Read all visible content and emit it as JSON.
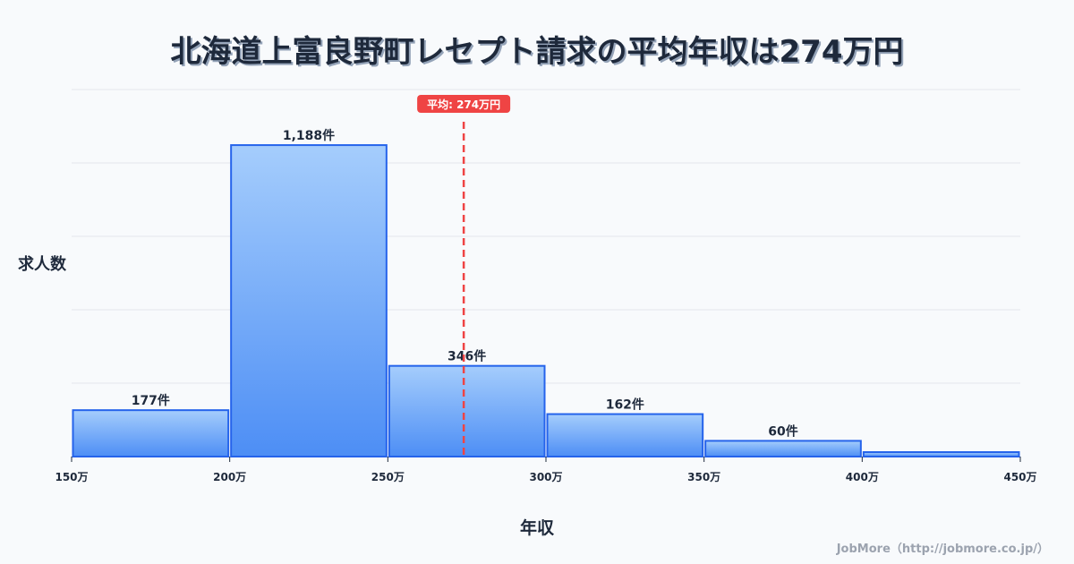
{
  "header": {
    "title": "北海道上富良野町レセプト請求の平均年収は274万円"
  },
  "axes": {
    "ylabel": "求人数",
    "xlabel": "年収"
  },
  "credit": "JobMore（http://jobmore.co.jp/）",
  "colors": {
    "bar_top": "#a5cdfc",
    "bar_bottom": "#4d8ef5",
    "bar_stroke": "#2563eb",
    "avg_line": "#ef4444",
    "grid": "#e5e7eb",
    "text": "#1e293b"
  },
  "chart_data": {
    "type": "bar",
    "title": "北海道上富良野町レセプト請求の平均年収は274万円",
    "xlabel": "年収",
    "ylabel": "求人数",
    "categories": [
      "150-200万",
      "200-250万",
      "250-300万",
      "300-350万",
      "350-400万",
      "400-450万"
    ],
    "bin_edges": [
      150,
      200,
      250,
      300,
      350,
      400,
      450
    ],
    "tick_labels": [
      "150万",
      "200万",
      "250万",
      "300万",
      "350万",
      "400万",
      "450万"
    ],
    "values": [
      177,
      1188,
      346,
      162,
      60,
      17
    ],
    "value_labels": [
      "177件",
      "1,188件",
      "346件",
      "162件",
      "60件",
      ""
    ],
    "ylim": [
      0,
      1400
    ],
    "grid": true,
    "annotations": [
      {
        "type": "vline",
        "x": 274,
        "label": "平均: 274万円",
        "color": "#ef4444",
        "style": "dashed"
      }
    ]
  }
}
